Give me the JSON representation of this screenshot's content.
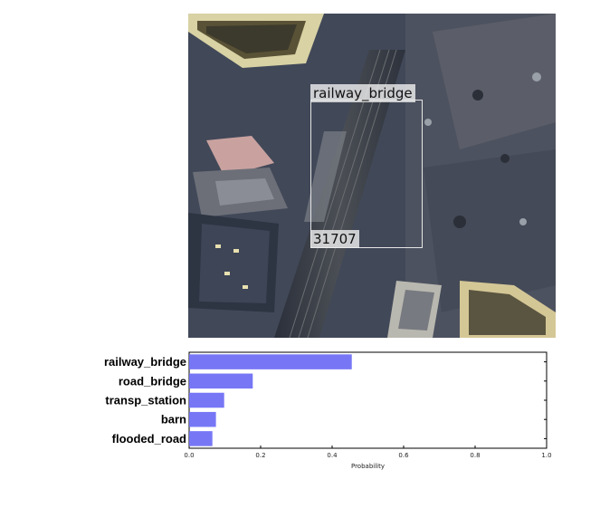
{
  "image": {
    "detection": {
      "class_label": "railway_bridge",
      "id_label": "31707"
    }
  },
  "chart_data": {
    "type": "bar",
    "orientation": "horizontal",
    "categories": [
      "railway_bridge",
      "road_bridge",
      "transp_station",
      "barn",
      "flooded_road"
    ],
    "values": [
      0.455,
      0.178,
      0.098,
      0.075,
      0.065
    ],
    "xlabel": "Probability",
    "xlim": [
      0.0,
      1.0
    ],
    "xticks": [
      "0.0",
      "0.2",
      "0.4",
      "0.6",
      "0.8",
      "1.0"
    ],
    "bar_color": "#7070f5",
    "grid": false
  }
}
